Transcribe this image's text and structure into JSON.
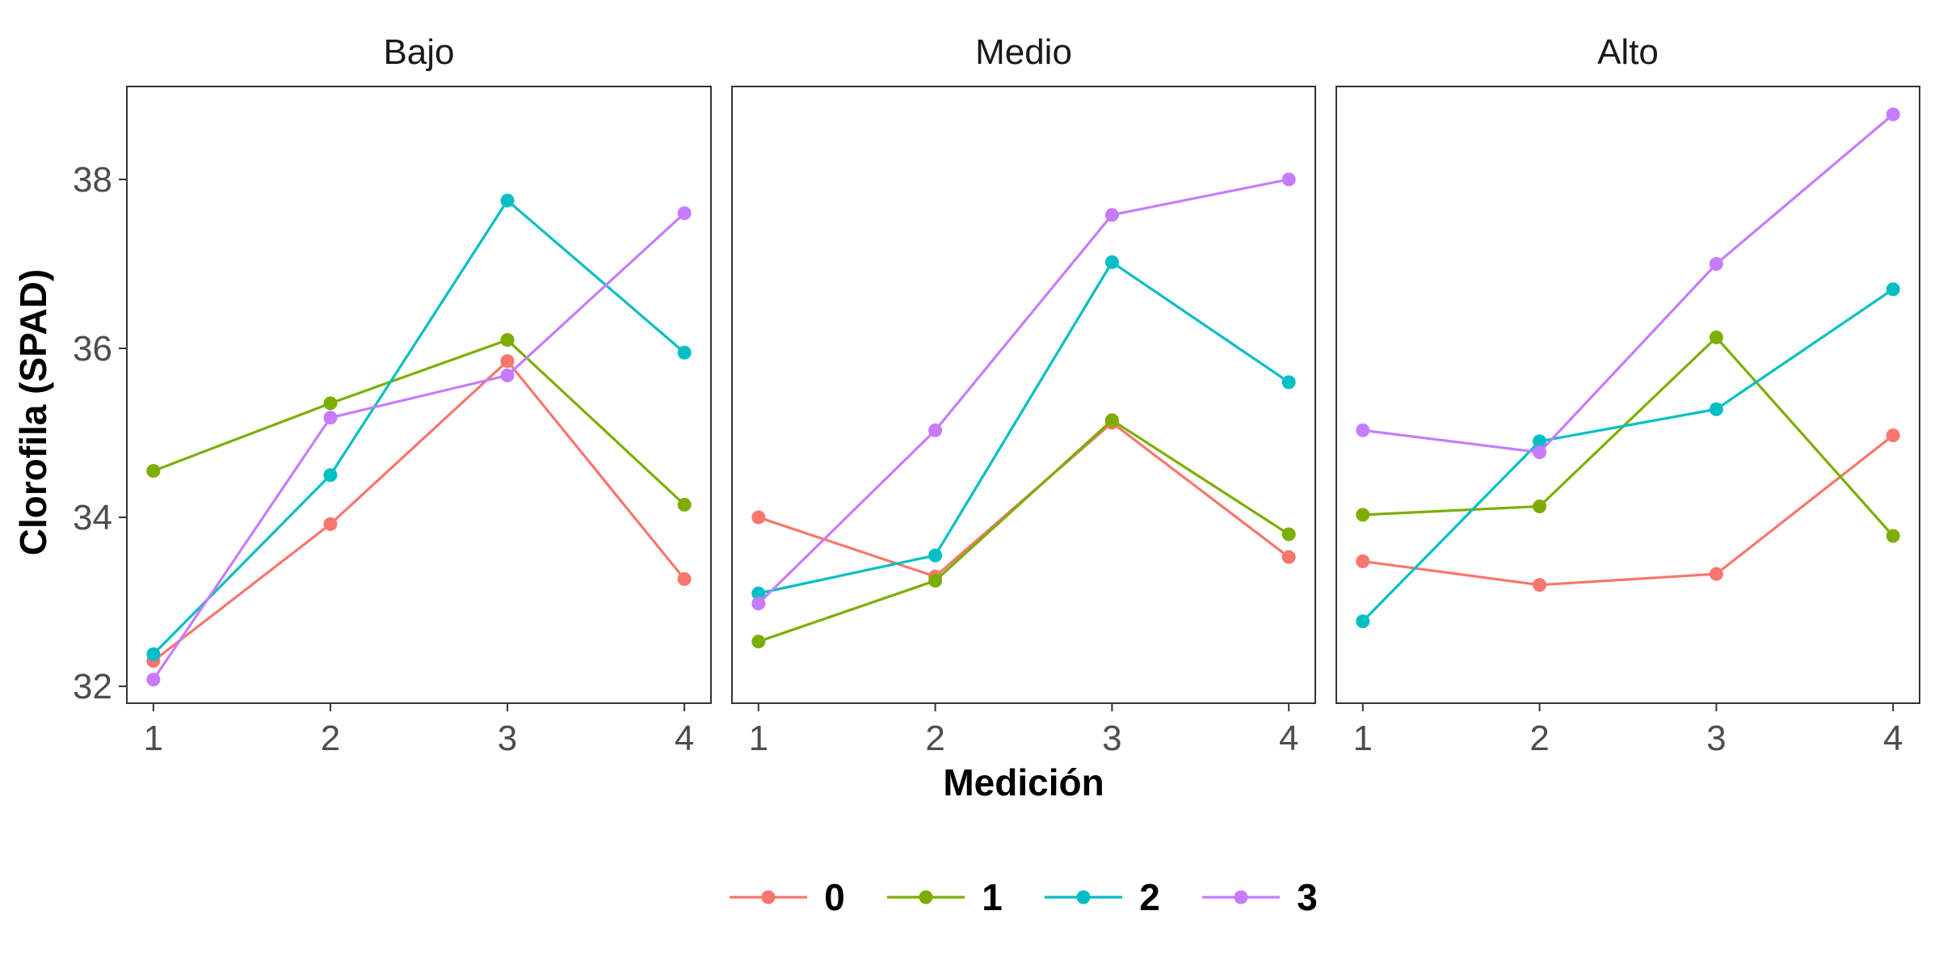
{
  "chart_data": {
    "type": "line",
    "xlabel": "Medición",
    "ylabel": "Clorofila (SPAD)",
    "x": [
      1,
      2,
      3,
      4
    ],
    "x_ticks": [
      "1",
      "2",
      "3",
      "4"
    ],
    "y_ticks": [
      32,
      34,
      36,
      38
    ],
    "ylim": [
      31.8,
      39.1
    ],
    "xlim": [
      0.85,
      4.15
    ],
    "grid": false,
    "legend_position": "bottom",
    "panels": [
      {
        "title": "Bajo",
        "series": [
          {
            "name": "0",
            "values": [
              32.3,
              33.92,
              35.85,
              33.27
            ]
          },
          {
            "name": "1",
            "values": [
              34.55,
              35.35,
              36.1,
              34.15
            ]
          },
          {
            "name": "2",
            "values": [
              32.38,
              34.5,
              37.75,
              35.95
            ]
          },
          {
            "name": "3",
            "values": [
              32.08,
              35.18,
              35.68,
              37.6
            ]
          }
        ]
      },
      {
        "title": "Medio",
        "series": [
          {
            "name": "0",
            "values": [
              34.0,
              33.3,
              35.12,
              33.53
            ]
          },
          {
            "name": "1",
            "values": [
              32.53,
              33.25,
              35.15,
              33.8
            ]
          },
          {
            "name": "2",
            "values": [
              33.1,
              33.55,
              37.02,
              35.6
            ]
          },
          {
            "name": "3",
            "values": [
              32.98,
              35.03,
              37.58,
              38.0
            ]
          }
        ]
      },
      {
        "title": "Alto",
        "series": [
          {
            "name": "0",
            "values": [
              33.48,
              33.2,
              33.33,
              34.97
            ]
          },
          {
            "name": "1",
            "values": [
              34.03,
              34.13,
              36.13,
              33.78
            ]
          },
          {
            "name": "2",
            "values": [
              32.77,
              34.9,
              35.28,
              36.7
            ]
          },
          {
            "name": "3",
            "values": [
              35.03,
              34.77,
              37.0,
              38.77
            ]
          }
        ]
      }
    ],
    "colors": {
      "0": "#F8766D",
      "1": "#7CAE00",
      "2": "#00BFC4",
      "3": "#C77CFF"
    },
    "legend": [
      "0",
      "1",
      "2",
      "3"
    ]
  }
}
